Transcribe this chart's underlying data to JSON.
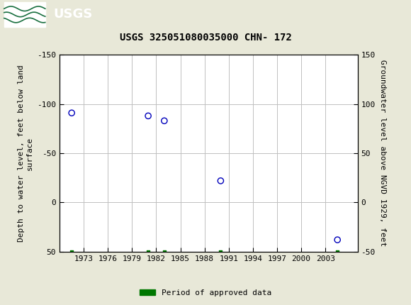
{
  "title": "USGS 325051080035000 CHN- 172",
  "scatter_x": [
    1971.5,
    1981.0,
    1983.0,
    1990.0,
    2004.5
  ],
  "scatter_y": [
    -91,
    -88,
    -83,
    -22,
    38
  ],
  "green_x": [
    1971.5,
    1981.0,
    1983.0,
    1990.0,
    2004.5
  ],
  "green_y": [
    50,
    50,
    50,
    50,
    50
  ],
  "xlim": [
    1970,
    2007
  ],
  "ylim_bottom": 50,
  "ylim_top": -150,
  "xticks": [
    1973,
    1976,
    1979,
    1982,
    1985,
    1988,
    1991,
    1994,
    1997,
    2000,
    2003
  ],
  "yticks_left_vals": [
    50,
    0,
    -50,
    -100,
    -150
  ],
  "yticks_left_labels": [
    "50",
    "0",
    "-50",
    "-100",
    "-150"
  ],
  "yticks_right_labels": [
    "-50",
    "0",
    "50",
    "100",
    "150"
  ],
  "ylabel_left": "Depth to water level, feet below land\nsurface",
  "ylabel_right": "Groundwater level above NGVD 1929, feet",
  "legend_label": "Period of approved data",
  "header_color": "#1a7040",
  "scatter_color": "#0000bb",
  "green_color": "#007700",
  "bg_color": "#e8e8d8",
  "plot_bg": "#ffffff",
  "grid_color": "#c0c0c0",
  "title_fontsize": 10,
  "tick_fontsize": 8,
  "label_fontsize": 8
}
